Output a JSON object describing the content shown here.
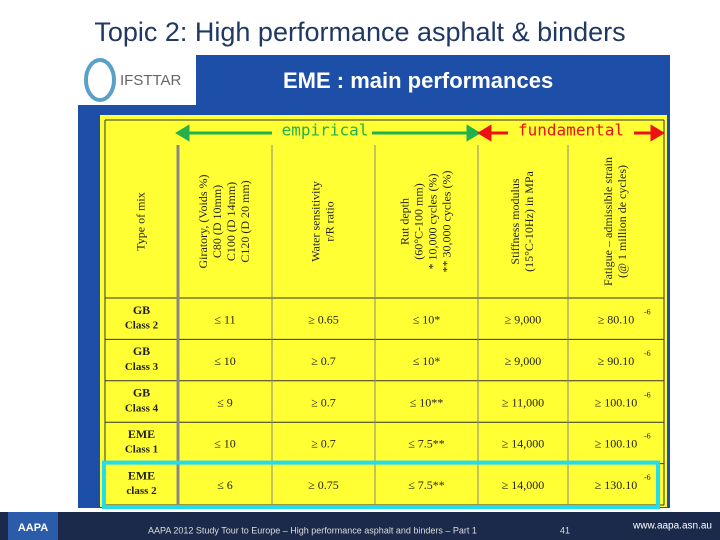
{
  "title": "Topic 2: High performance asphalt & binders",
  "logo": "IFSTTAR",
  "heading": "EME : main performances",
  "groups": [
    "empirical",
    "fundamental"
  ],
  "table": {
    "header": [
      [
        "Type of mix"
      ],
      [
        "Giratory, (Voids %)",
        "C80 (D 10mm)",
        "C100 (D 14mm)",
        "C120 (D 20 mm)"
      ],
      [
        "Water sensitivity",
        "r/R ratio"
      ],
      [
        "Rut depth",
        "(60°C-100 mm)",
        "* 10,000 cycles (%)",
        "** 30,000 cycles (%)"
      ],
      [
        "Stiffness modulus",
        "(15°C-10Hz) in MPa"
      ],
      [
        "Fatigue – admissible strain",
        "(@ 1 million de cycles)"
      ]
    ],
    "rows": [
      {
        "mix": "GB",
        "class": "Class 2",
        "cells": [
          "≤ 11",
          "≥ 0.65",
          "≤ 10*",
          "≥ 9,000",
          "≥ 80.10"
        ],
        "exp": "-6"
      },
      {
        "mix": "GB",
        "class": "Class 3",
        "cells": [
          "≤ 10",
          "≥ 0.7",
          "≤ 10*",
          "≥ 9,000",
          "≥ 90.10"
        ],
        "exp": "-6"
      },
      {
        "mix": "GB",
        "class": "Class 4",
        "cells": [
          "≤ 9",
          "≥ 0.7",
          "≤ 10**",
          "≥ 11,000",
          "≥ 100.10"
        ],
        "exp": "-6"
      },
      {
        "mix": "EME",
        "class": "Class 1",
        "cells": [
          "≤ 10",
          "≥ 0.7",
          "≤ 7.5**",
          "≥ 14,000",
          "≥ 100.10"
        ],
        "exp": "-6"
      },
      {
        "mix": "EME",
        "class": "class 2",
        "cells": [
          "≤ 6",
          "≥ 0.75",
          "≤ 7.5**",
          "≥ 14,000",
          "≥ 130.10"
        ],
        "exp": "-6"
      }
    ]
  },
  "footer": {
    "logo": "AAPA",
    "text": "AAPA 2012 Study Tour to Europe – High performance asphalt and binders – Part 1",
    "page": "41",
    "url": "www.aapa.asn.au"
  }
}
